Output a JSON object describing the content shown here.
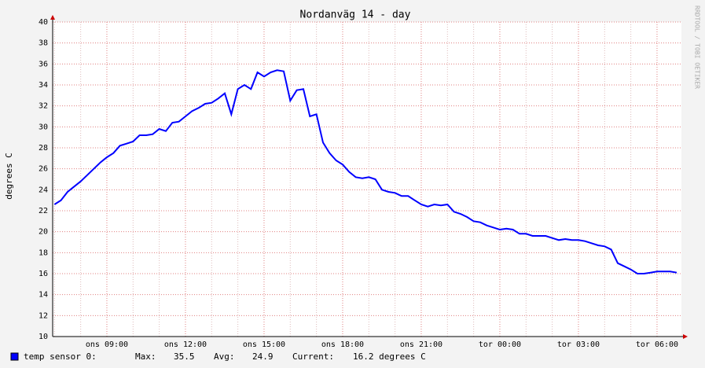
{
  "chart_data": {
    "type": "line",
    "title": "Nordanväg 14 - day",
    "y_label": "degrees C",
    "watermark": "RRDTOOL / TOBI OETIKER",
    "categories": [
      null,
      null,
      null,
      null,
      null,
      null,
      null,
      null,
      "ons 09:00",
      null,
      null,
      null,
      null,
      null,
      null,
      null,
      null,
      null,
      null,
      null,
      "ons 12:00",
      null,
      null,
      null,
      null,
      null,
      null,
      null,
      null,
      null,
      null,
      null,
      "ons 15:00",
      null,
      null,
      null,
      null,
      null,
      null,
      null,
      null,
      null,
      null,
      null,
      "ons 18:00",
      null,
      null,
      null,
      null,
      null,
      null,
      null,
      null,
      null,
      null,
      null,
      "ons 21:00",
      null,
      null,
      null,
      null,
      null,
      null,
      null,
      null,
      null,
      null,
      null,
      "tor 00:00",
      null,
      null,
      null,
      null,
      null,
      null,
      null,
      null,
      null,
      null,
      null,
      "tor 03:00",
      null,
      null,
      null,
      null,
      null,
      null,
      null,
      null,
      null,
      null,
      null,
      "tor 06:00",
      null,
      null,
      null
    ],
    "series": [
      {
        "name": "temp sensor 0:",
        "color": "#0000ff",
        "values": [
          22.6,
          23.0,
          23.8,
          24.3,
          24.8,
          25.4,
          26.0,
          26.6,
          27.1,
          27.5,
          28.2,
          28.4,
          28.6,
          29.2,
          29.2,
          29.3,
          29.8,
          29.6,
          30.4,
          30.5,
          31.0,
          31.5,
          31.8,
          32.2,
          32.3,
          32.7,
          33.2,
          31.2,
          33.6,
          34.0,
          33.6,
          35.2,
          34.8,
          35.2,
          35.4,
          35.3,
          32.5,
          33.5,
          33.6,
          31.0,
          31.2,
          28.5,
          27.5,
          26.8,
          26.4,
          25.7,
          25.2,
          25.1,
          25.2,
          25.0,
          24.0,
          23.8,
          23.7,
          23.4,
          23.4,
          23.0,
          22.6,
          22.4,
          22.6,
          22.5,
          22.6,
          21.9,
          21.7,
          21.4,
          21.0,
          20.9,
          20.6,
          20.4,
          20.2,
          20.3,
          20.2,
          19.8,
          19.8,
          19.6,
          19.6,
          19.6,
          19.4,
          19.2,
          19.3,
          19.2,
          19.2,
          19.1,
          18.9,
          18.7,
          18.6,
          18.3,
          17.0,
          16.7,
          16.4,
          16.0,
          16.0,
          16.1,
          16.2,
          16.2,
          16.2,
          16.1
        ]
      }
    ],
    "legend_stats": [
      "Max:",
      "35.5",
      "Avg:",
      "24.9",
      "Current:",
      "16.2 degrees C"
    ],
    "ylim": [
      10,
      40
    ],
    "yticks": [
      10,
      12,
      14,
      16,
      18,
      20,
      22,
      24,
      26,
      28,
      30,
      32,
      34,
      36,
      38,
      40
    ],
    "grid": true
  }
}
